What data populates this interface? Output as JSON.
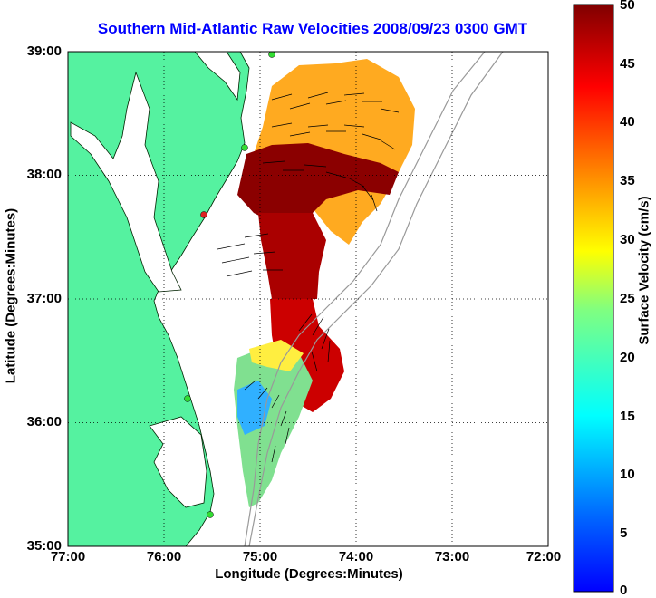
{
  "title": "Southern Mid-Atlantic Raw Velocities 2008/09/23 0300 GMT",
  "axes": {
    "xlabel": "Longitude (Degrees:Minutes)",
    "ylabel": "Latitude (Degrees:Minutes)",
    "xticks": [
      "77:00",
      "76:00",
      "75:00",
      "74:00",
      "73:00",
      "72:00"
    ],
    "yticks": [
      "39:00",
      "38:00",
      "37:00",
      "36:00",
      "35:00"
    ],
    "xlim": [
      -77,
      -72
    ],
    "ylim": [
      35,
      39
    ],
    "grid": "dotted"
  },
  "colorbar": {
    "label": "Surface Velocity (cm/s)",
    "ticks": [
      "50",
      "45",
      "40",
      "35",
      "30",
      "25",
      "20",
      "15",
      "10",
      "5",
      "0"
    ],
    "range": [
      0,
      50
    ],
    "colormap": "jet"
  },
  "colors": {
    "land": "#55f2a0",
    "water": "#ffffff",
    "title": "#0000ff",
    "high": "#8b0000",
    "low": "#0000ff"
  }
}
